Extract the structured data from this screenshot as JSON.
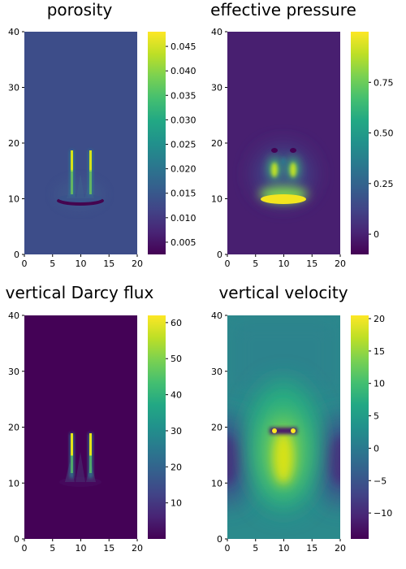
{
  "chart_data": [
    {
      "type": "heatmap",
      "title": "porosity",
      "xlim": [
        0,
        20
      ],
      "ylim": [
        0,
        40
      ],
      "xticks": [
        "0",
        "5",
        "10",
        "15",
        "20"
      ],
      "yticks": [
        "0",
        "10",
        "20",
        "30",
        "40"
      ],
      "colorbar": {
        "range": [
          0.0025,
          0.048
        ],
        "ticks": [
          0.005,
          0.01,
          0.015,
          0.02,
          0.025,
          0.03,
          0.035,
          0.04,
          0.045
        ],
        "tick_labels": [
          "0.005",
          "0.010",
          "0.015",
          "0.020",
          "0.025",
          "0.030",
          "0.035",
          "0.040",
          "0.045"
        ]
      },
      "background_value": 0.0155,
      "features": [
        {
          "kind": "band",
          "x": [
            5.5,
            14
          ],
          "y": [
            9.2,
            10.5
          ],
          "value": 0.003
        },
        {
          "kind": "band",
          "x": [
            6,
            14
          ],
          "y": [
            10.2,
            11.4
          ],
          "value": 0.0165
        },
        {
          "kind": "column",
          "x": 8.4,
          "y": [
            11,
            19
          ],
          "value": 0.045
        },
        {
          "kind": "column",
          "x": 11.6,
          "y": [
            11,
            19
          ],
          "value": 0.045
        }
      ],
      "grid": false
    },
    {
      "type": "heatmap",
      "title": "effective pressure",
      "xlim": [
        0,
        20
      ],
      "ylim": [
        0,
        40
      ],
      "xticks": [
        "0",
        "5",
        "10",
        "15",
        "20"
      ],
      "yticks": [
        "0",
        "10",
        "20",
        "30",
        "40"
      ],
      "colorbar": {
        "range": [
          -0.1,
          1.0
        ],
        "ticks": [
          0,
          0.25,
          0.5,
          0.75
        ],
        "tick_labels": [
          "0",
          "0.25",
          "0.50",
          "0.75"
        ]
      },
      "background_value": -0.03,
      "features": [
        {
          "kind": "band",
          "x": [
            6,
            14
          ],
          "y": [
            9,
            10.5
          ],
          "value": 0.95
        },
        {
          "kind": "blob",
          "x": 8.4,
          "y": 15,
          "value": 0.8
        },
        {
          "kind": "blob",
          "x": 11.6,
          "y": 15,
          "value": 0.8
        }
      ],
      "grid": false
    },
    {
      "type": "heatmap",
      "title": "vertical Darcy flux",
      "xlim": [
        0,
        20
      ],
      "ylim": [
        0,
        40
      ],
      "xticks": [
        "0",
        "5",
        "10",
        "15",
        "20"
      ],
      "yticks": [
        "0",
        "10",
        "20",
        "30",
        "40"
      ],
      "colorbar": {
        "range": [
          0,
          62
        ],
        "ticks": [
          10,
          20,
          30,
          40,
          50,
          60
        ],
        "tick_labels": [
          "10",
          "20",
          "30",
          "40",
          "50",
          "60"
        ]
      },
      "background_value": 0,
      "features": [
        {
          "kind": "column",
          "x": 8.4,
          "y": [
            12,
            19
          ],
          "value": 58
        },
        {
          "kind": "column",
          "x": 11.6,
          "y": [
            12,
            19
          ],
          "value": 58
        }
      ],
      "grid": false
    },
    {
      "type": "heatmap",
      "title": "vertical velocity",
      "xlim": [
        0,
        20
      ],
      "ylim": [
        0,
        40
      ],
      "xticks": [
        "0",
        "5",
        "10",
        "15",
        "20"
      ],
      "yticks": [
        "0",
        "10",
        "20",
        "30",
        "40"
      ],
      "colorbar": {
        "range": [
          -14,
          20.5
        ],
        "ticks": [
          -10,
          -5,
          0,
          5,
          10,
          15,
          20
        ],
        "tick_labels": [
          "−10",
          "−5",
          "0",
          "5",
          "10",
          "15",
          "20"
        ]
      },
      "background_value": 0,
      "features": [
        {
          "kind": "plume",
          "x": 10,
          "y": 14,
          "value": 18
        },
        {
          "kind": "side-low",
          "x": 0,
          "y": 14,
          "value": -12
        },
        {
          "kind": "side-low",
          "x": 20,
          "y": 14,
          "value": -12
        }
      ],
      "grid": false
    }
  ]
}
